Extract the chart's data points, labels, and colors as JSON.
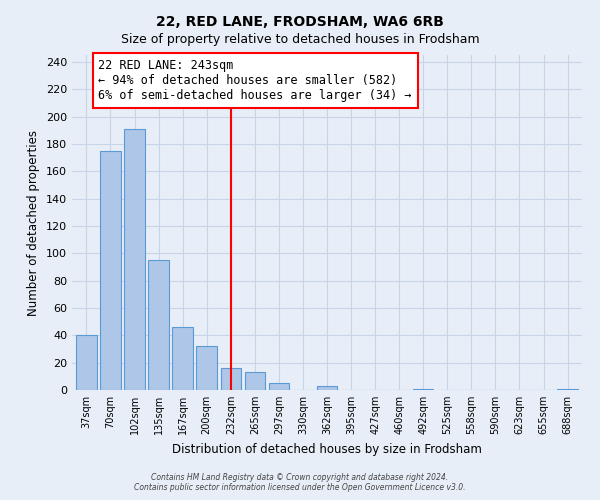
{
  "title": "22, RED LANE, FRODSHAM, WA6 6RB",
  "subtitle": "Size of property relative to detached houses in Frodsham",
  "xlabel": "Distribution of detached houses by size in Frodsham",
  "ylabel": "Number of detached properties",
  "bar_labels": [
    "37sqm",
    "70sqm",
    "102sqm",
    "135sqm",
    "167sqm",
    "200sqm",
    "232sqm",
    "265sqm",
    "297sqm",
    "330sqm",
    "362sqm",
    "395sqm",
    "427sqm",
    "460sqm",
    "492sqm",
    "525sqm",
    "558sqm",
    "590sqm",
    "623sqm",
    "655sqm",
    "688sqm"
  ],
  "bar_values": [
    40,
    175,
    191,
    95,
    46,
    32,
    16,
    13,
    5,
    0,
    3,
    0,
    0,
    0,
    1,
    0,
    0,
    0,
    0,
    0,
    1
  ],
  "bar_color": "#aec6e8",
  "bar_edge_color": "#5b9bd5",
  "vline_x": 6.0,
  "vline_color": "red",
  "ann_line1": "22 RED LANE: 243sqm",
  "ann_line2": "← 94% of detached houses are smaller (582)",
  "ann_line3": "6% of semi-detached houses are larger (34) →",
  "ylim": [
    0,
    245
  ],
  "yticks": [
    0,
    20,
    40,
    60,
    80,
    100,
    120,
    140,
    160,
    180,
    200,
    220,
    240
  ],
  "background_color": "#e8eef7",
  "grid_color": "#c8d4e8",
  "footer_line1": "Contains HM Land Registry data © Crown copyright and database right 2024.",
  "footer_line2": "Contains public sector information licensed under the Open Government Licence v3.0."
}
